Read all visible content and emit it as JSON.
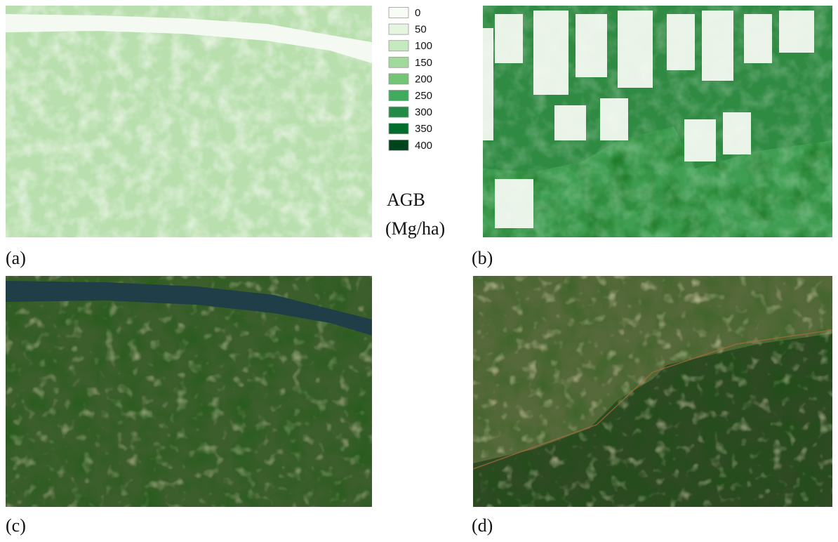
{
  "legend": {
    "title_line1": "AGB",
    "title_line2": "(Mg/ha)",
    "items": [
      {
        "label": "0",
        "color": "#f7fcf5"
      },
      {
        "label": "50",
        "color": "#e5f5e0"
      },
      {
        "label": "100",
        "color": "#c7e9c0"
      },
      {
        "label": "150",
        "color": "#a1d99b"
      },
      {
        "label": "200",
        "color": "#74c476"
      },
      {
        "label": "250",
        "color": "#41ab5d"
      },
      {
        "label": "300",
        "color": "#238b45"
      },
      {
        "label": "350",
        "color": "#006d2c"
      },
      {
        "label": "400",
        "color": "#00441b"
      }
    ]
  },
  "panels": [
    {
      "caption": "(a)"
    },
    {
      "caption": "(b)"
    },
    {
      "caption": "(c)"
    },
    {
      "caption": "(d)"
    }
  ]
}
